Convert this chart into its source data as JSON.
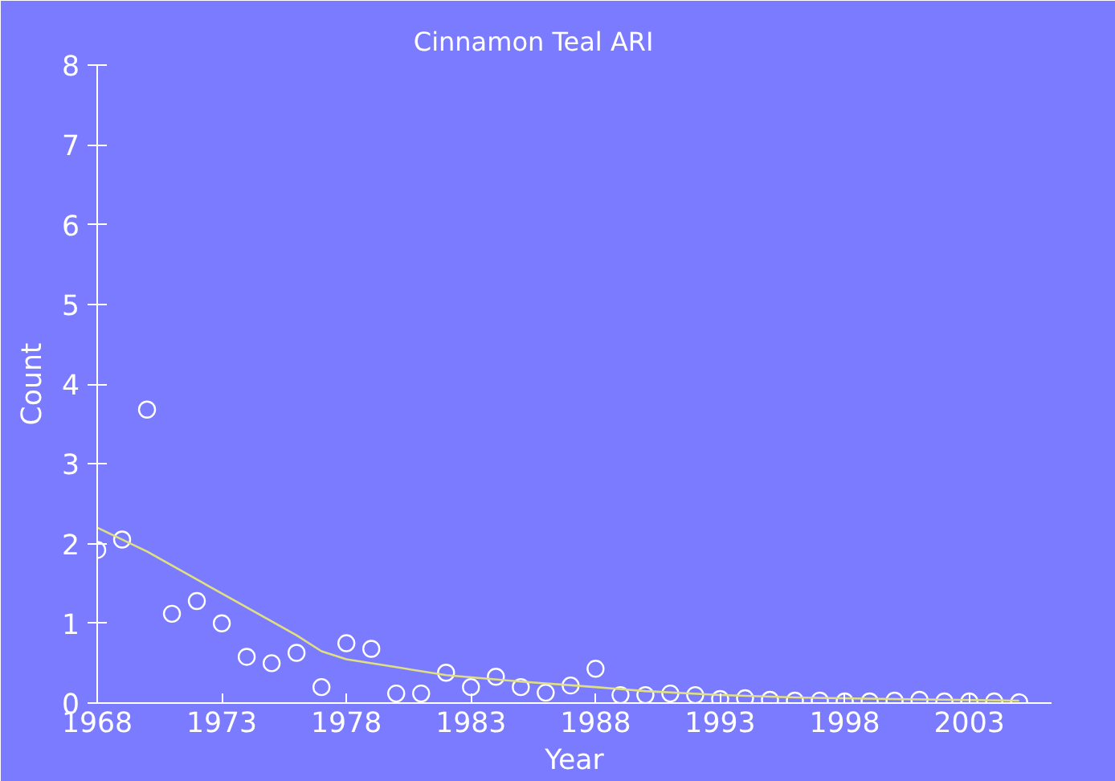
{
  "chart_data": {
    "type": "scatter",
    "title": "Cinnamon  Teal",
    "subtitle": "ARI",
    "xlabel": "Year",
    "ylabel": "Count",
    "xlim": [
      1968,
      2006.3
    ],
    "ylim": [
      0,
      8
    ],
    "xticks": [
      1968,
      1973,
      1978,
      1983,
      1988,
      1993,
      1998,
      2003
    ],
    "yticks": [
      0,
      1,
      2,
      3,
      4,
      5,
      6,
      7,
      8
    ],
    "grid": false,
    "series": [
      {
        "color": "#ffffff",
        "marker": "circle",
        "x": [
          1968,
          1969,
          1970,
          1971,
          1972,
          1973,
          1974,
          1975,
          1976,
          1977,
          1978,
          1979,
          1980,
          1981,
          1982,
          1983,
          1984,
          1985,
          1986,
          1987,
          1988,
          1989,
          1990,
          1991,
          1992,
          1993,
          1994,
          1995,
          1996,
          1997,
          1998,
          1999,
          2000,
          2001,
          2002,
          2003,
          2004,
          2005
        ],
        "values": [
          1.92,
          2.05,
          3.68,
          1.12,
          1.28,
          1.0,
          0.58,
          0.5,
          0.63,
          0.2,
          0.75,
          0.68,
          0.12,
          0.12,
          0.38,
          0.2,
          0.33,
          0.2,
          0.13,
          0.22,
          0.43,
          0.1,
          0.1,
          0.12,
          0.1,
          0.05,
          0.06,
          0.04,
          0.03,
          0.03,
          0.02,
          0.02,
          0.03,
          0.04,
          0.02,
          0.02,
          0.02,
          0.01
        ]
      },
      {
        "type": "line",
        "color": "#e0e080",
        "x": [
          1968,
          1970,
          1972,
          1974,
          1976,
          1977,
          1978,
          1980,
          1982,
          1985,
          1988,
          1990,
          1993,
          1996,
          2000,
          2005
        ],
        "values": [
          2.2,
          1.9,
          1.55,
          1.2,
          0.85,
          0.65,
          0.55,
          0.45,
          0.35,
          0.27,
          0.2,
          0.15,
          0.1,
          0.07,
          0.05,
          0.03
        ]
      }
    ]
  }
}
